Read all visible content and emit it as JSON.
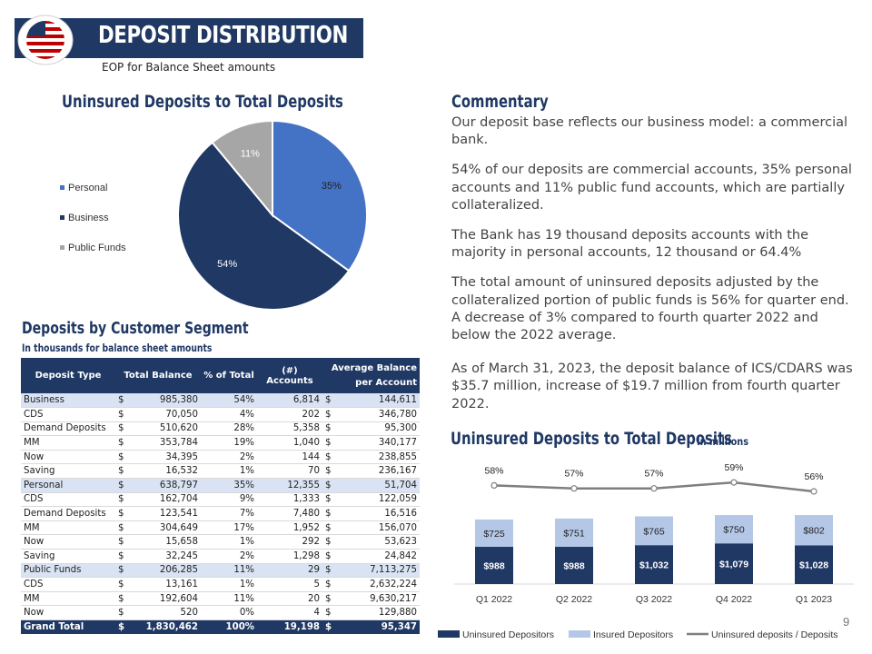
{
  "header": {
    "title": "DEPOSIT DISTRIBUTION",
    "subtitle": "EOP for Balance Sheet amounts"
  },
  "colors": {
    "navy": "#1f3864",
    "blue": "#4472c4",
    "gray": "#a6a6a6",
    "light_blue": "#b4c7e7",
    "line": "#7f7f7f"
  },
  "pie_section": {
    "title": "Uninsured Deposits to Total Deposits",
    "legend": [
      "Personal",
      "Business",
      "Public Funds"
    ]
  },
  "commentary": {
    "title": "Commentary",
    "paragraphs": [
      "Our deposit base reflects our business model: a commercial bank.",
      "54% of our deposits are commercial accounts, 35% personal accounts and 11% public fund accounts, which are partially collateralized.",
      "The Bank has 19 thousand deposits accounts with the majority in personal accounts, 12 thousand or 64.4%",
      "The total amount of uninsured deposits adjusted by the collateralized portion of public funds is 56% for quarter end. A decrease of 3% compared to fourth quarter 2022 and below the 2022 average.",
      "As of March 31, 2023, the deposit balance of ICS/CDARS was $35.7 million, increase of $19.7 million from fourth quarter 2022."
    ]
  },
  "segment": {
    "title": "Deposits by Customer Segment",
    "subtitle": "In thousands for balance sheet amounts",
    "headers": [
      "Deposit Type",
      "Total Balance",
      "% of Total",
      "(#) Accounts",
      "Average Balance per Account"
    ],
    "rows": [
      {
        "type": "Business",
        "balance": "985,380",
        "pct": "54%",
        "accounts": "6,814",
        "avg": "144,611",
        "group": true
      },
      {
        "type": "CDS",
        "balance": "70,050",
        "pct": "4%",
        "accounts": "202",
        "avg": "346,780"
      },
      {
        "type": "Demand Deposits",
        "balance": "510,620",
        "pct": "28%",
        "accounts": "5,358",
        "avg": "95,300"
      },
      {
        "type": "MM",
        "balance": "353,784",
        "pct": "19%",
        "accounts": "1,040",
        "avg": "340,177"
      },
      {
        "type": "Now",
        "balance": "34,395",
        "pct": "2%",
        "accounts": "144",
        "avg": "238,855"
      },
      {
        "type": "Saving",
        "balance": "16,532",
        "pct": "1%",
        "accounts": "70",
        "avg": "236,167"
      },
      {
        "type": "Personal",
        "balance": "638,797",
        "pct": "35%",
        "accounts": "12,355",
        "avg": "51,704",
        "group": true
      },
      {
        "type": "CDS",
        "balance": "162,704",
        "pct": "9%",
        "accounts": "1,333",
        "avg": "122,059"
      },
      {
        "type": "Demand Deposits",
        "balance": "123,541",
        "pct": "7%",
        "accounts": "7,480",
        "avg": "16,516"
      },
      {
        "type": "MM",
        "balance": "304,649",
        "pct": "17%",
        "accounts": "1,952",
        "avg": "156,070"
      },
      {
        "type": "Now",
        "balance": "15,658",
        "pct": "1%",
        "accounts": "292",
        "avg": "53,623"
      },
      {
        "type": "Saving",
        "balance": "32,245",
        "pct": "2%",
        "accounts": "1,298",
        "avg": "24,842"
      },
      {
        "type": "Public Funds",
        "balance": "206,285",
        "pct": "11%",
        "accounts": "29",
        "avg": "7,113,275",
        "group": true
      },
      {
        "type": "CDS",
        "balance": "13,161",
        "pct": "1%",
        "accounts": "5",
        "avg": "2,632,224"
      },
      {
        "type": "MM",
        "balance": "192,604",
        "pct": "11%",
        "accounts": "20",
        "avg": "9,630,217"
      },
      {
        "type": "Now",
        "balance": "520",
        "pct": "0%",
        "accounts": "4",
        "avg": "129,880"
      }
    ],
    "total": {
      "type": "Grand Total",
      "balance": "1,830,462",
      "pct": "100%",
      "accounts": "19,198",
      "avg": "95,347"
    },
    "currency": "$"
  },
  "bar_section": {
    "title": "Uninsured Deposits to Total Deposits",
    "subtitle": "In millions"
  },
  "page_number": "9",
  "chart_data": [
    {
      "type": "pie",
      "title": "Uninsured Deposits to Total Deposits",
      "categories": [
        "Personal",
        "Business",
        "Public Funds"
      ],
      "values": [
        35,
        54,
        11
      ],
      "labels": [
        "35%",
        "54%",
        "11%"
      ],
      "colors": [
        "#4472c4",
        "#1f3864",
        "#a6a6a6"
      ],
      "legend_position": "left"
    },
    {
      "type": "bar",
      "stacked": true,
      "title": "Uninsured Deposits to Total Deposits",
      "subtitle": "In millions",
      "categories": [
        "Q1 2022",
        "Q2 2022",
        "Q3 2022",
        "Q4 2022",
        "Q1 2023"
      ],
      "series": [
        {
          "name": "Uninsured Depositors",
          "values": [
            988,
            988,
            1032,
            1079,
            1028
          ],
          "labels": [
            "$988",
            "$988",
            "$1,032",
            "$1,079",
            "$1,028"
          ],
          "color": "#1f3864"
        },
        {
          "name": "Insured Depositors",
          "values": [
            725,
            751,
            765,
            750,
            802
          ],
          "labels": [
            "$725",
            "$751",
            "$765",
            "$750",
            "$802"
          ],
          "color": "#b4c7e7"
        }
      ],
      "line_series": {
        "name": "Uninsured deposits / Deposits",
        "values": [
          58,
          57,
          57,
          59,
          56
        ],
        "labels": [
          "58%",
          "57%",
          "57%",
          "59%",
          "56%"
        ],
        "color": "#7f7f7f"
      },
      "ylim": [
        0,
        1900
      ],
      "legend_position": "bottom"
    }
  ]
}
